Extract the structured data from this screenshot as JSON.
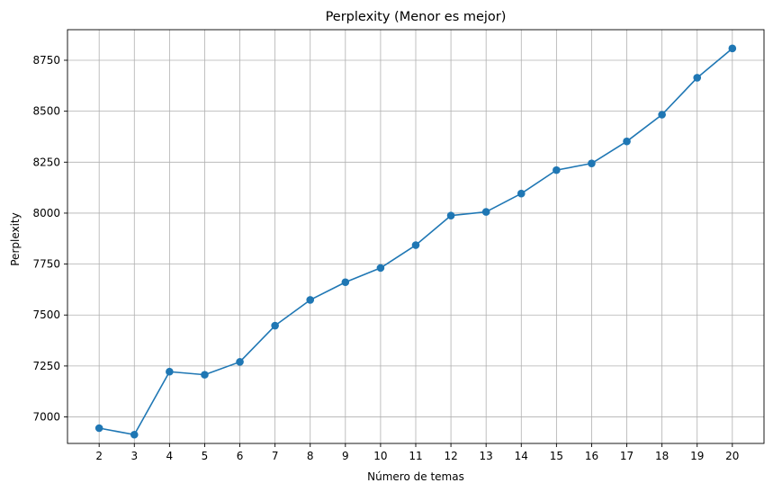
{
  "chart_data": {
    "type": "line",
    "title": "Perplexity (Menor es mejor)",
    "xlabel": "Número de temas",
    "ylabel": "Perplexity",
    "x": [
      2,
      3,
      4,
      5,
      6,
      7,
      8,
      9,
      10,
      11,
      12,
      13,
      14,
      15,
      16,
      17,
      18,
      19,
      20
    ],
    "series": [
      {
        "values": [
          6945,
          6913,
          7222,
          7207,
          7270,
          7448,
          7574,
          7661,
          7731,
          7843,
          7988,
          8006,
          8096,
          8211,
          8244,
          8352,
          8483,
          8664,
          8808
        ]
      }
    ],
    "xlim": [
      1.1,
      20.9
    ],
    "ylim": [
      6870,
      8900
    ],
    "yticks": [
      7000,
      7250,
      7500,
      7750,
      8000,
      8250,
      8500,
      8750
    ],
    "xticks": [
      2,
      3,
      4,
      5,
      6,
      7,
      8,
      9,
      10,
      11,
      12,
      13,
      14,
      15,
      16,
      17,
      18,
      19,
      20
    ],
    "grid": true,
    "marker": "circle",
    "color": "#1f77b4"
  }
}
